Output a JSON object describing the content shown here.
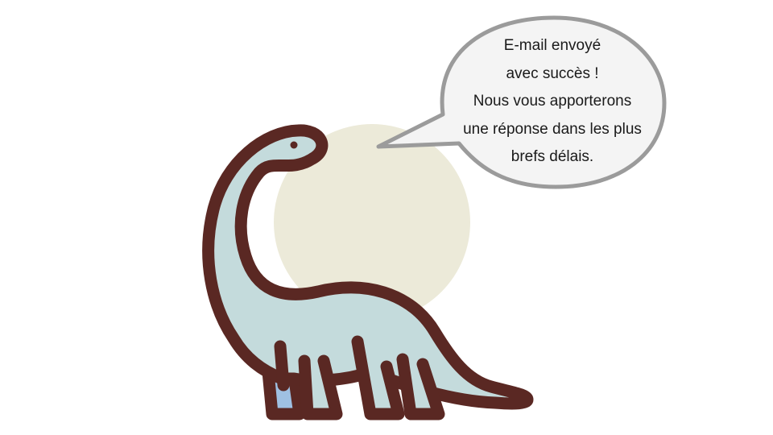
{
  "colors": {
    "background": "#ffffff",
    "sun": "#ecead9",
    "dino_body": "#c4dbdc",
    "dino_outline": "#5a2823",
    "dino_back_leg": "#9fc0e2",
    "bubble_fill": "#f4f4f4",
    "bubble_border": "#9b9b9b",
    "text": "#1a1a1a"
  },
  "illustration": {
    "icons": [
      "dinosaur-icon",
      "sun-circle",
      "speech-bubble"
    ]
  },
  "message": {
    "lines": [
      "E-mail envoyé",
      "avec succès !",
      "Nous vous apporterons",
      "une réponse dans les plus",
      "brefs délais."
    ]
  }
}
